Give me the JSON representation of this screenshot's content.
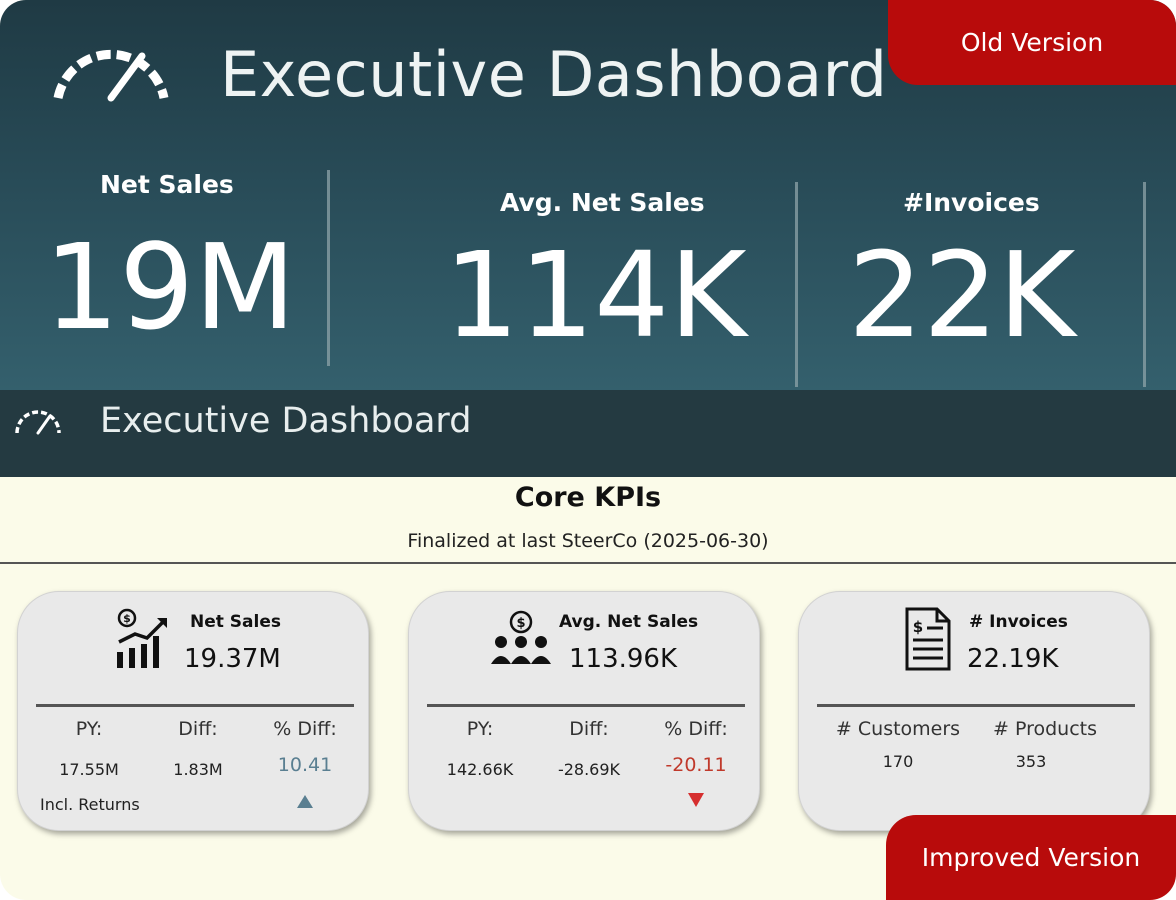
{
  "old_version": {
    "title": "Executive Dashboard",
    "gauge_icon": "speedometer-icon",
    "kpis": [
      {
        "label": "Net Sales",
        "value": "19M"
      },
      {
        "label": "Avg. Net Sales",
        "value": "114K"
      },
      {
        "label": "#Invoices",
        "value": "22K"
      }
    ]
  },
  "improved_version": {
    "header": {
      "title": "Executive Dashboard",
      "icon": "speedometer-icon"
    },
    "section_title": "Core KPIs",
    "section_subtitle": "Finalized at last SteerCo (2025-06-30)",
    "cards": [
      {
        "icon": "sales-growth-chart-icon",
        "label": "Net Sales",
        "value": "19.37M",
        "columns": [
          {
            "header": "PY:",
            "value": "17.55M"
          },
          {
            "header": "Diff:",
            "value": "1.83M"
          },
          {
            "header": "% Diff:",
            "value": "10.41"
          }
        ],
        "trend": "up",
        "note": "Incl. Returns"
      },
      {
        "icon": "customer-group-dollar-icon",
        "label": "Avg. Net Sales",
        "value": "113.96K",
        "columns": [
          {
            "header": "PY:",
            "value": "142.66K"
          },
          {
            "header": "Diff:",
            "value": "-28.69K"
          },
          {
            "header": "% Diff:",
            "value": "-20.11"
          }
        ],
        "trend": "down"
      },
      {
        "icon": "invoice-document-icon",
        "label": "# Invoices",
        "value": "22.19K",
        "columns": [
          {
            "header": "# Customers",
            "value": "170"
          },
          {
            "header": "# Products",
            "value": "353"
          }
        ]
      }
    ]
  },
  "badges": {
    "old": "Old Version",
    "improved": "Improved Version"
  },
  "colors": {
    "badge": "#b80b0b",
    "header": "#243a41",
    "positive": "#5a7f91",
    "negative": "#d62f2f",
    "background": "#fbfbe9"
  }
}
